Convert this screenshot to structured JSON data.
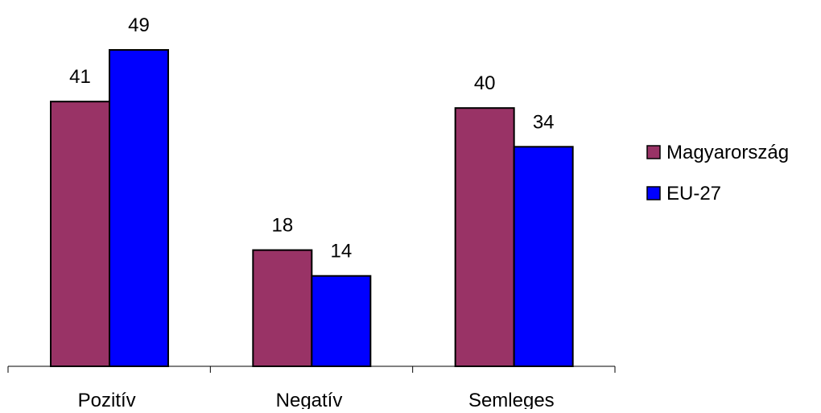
{
  "chart_data": {
    "type": "bar",
    "title": "",
    "xlabel": "",
    "ylabel": "",
    "categories": [
      "Pozitív",
      "Negatív",
      "Semleges"
    ],
    "series": [
      {
        "name": "Magyarország",
        "values": [
          41,
          18,
          40
        ],
        "color": "#993366"
      },
      {
        "name": "EU-27",
        "values": [
          49,
          14,
          34
        ],
        "color": "#0000ff"
      }
    ],
    "ylim": [
      0,
      49
    ],
    "grid": false,
    "legend": "right",
    "data_labels": true,
    "y_axis_visible": false
  }
}
